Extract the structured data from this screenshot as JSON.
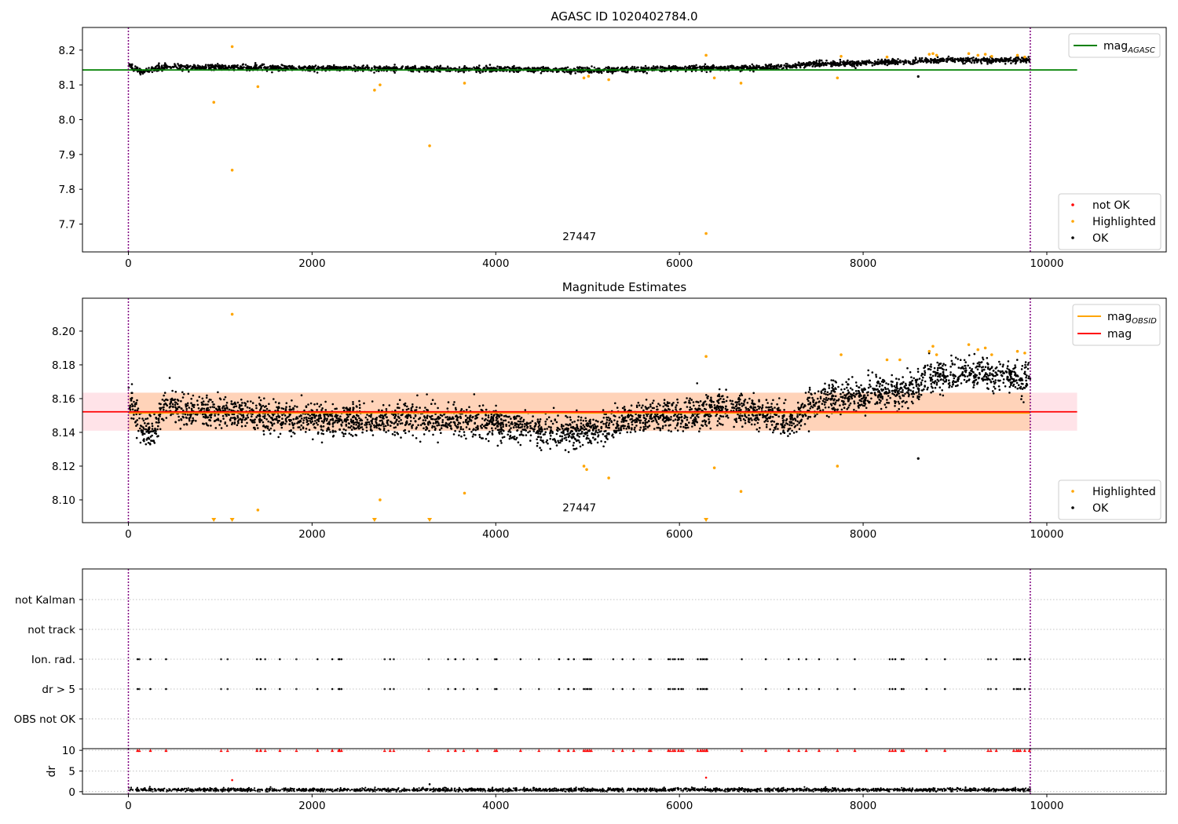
{
  "figure": {
    "colors": {
      "ok": "#000000",
      "highlighted": "#ffa500",
      "not_ok": "#ff0000",
      "agasc_line": "#008000",
      "mag_line": "#ff0000",
      "obsid_line": "#ffa500",
      "band_outer": "#ffc0cb",
      "band_inner": "#ffd0b0",
      "obs_boundary": "#800080"
    }
  },
  "chart_data": [
    {
      "id": "top",
      "type": "scatter",
      "title": "AGASC ID 1020402784.0",
      "xlim": [
        -500,
        11300
      ],
      "ylim": [
        7.62,
        8.265
      ],
      "xticks": [
        0,
        2000,
        4000,
        6000,
        8000,
        10000
      ],
      "yticks": [
        7.7,
        7.8,
        7.9,
        8.0,
        8.1,
        8.2
      ],
      "xtick_labels": [
        "0",
        "2000",
        "4000",
        "6000",
        "8000",
        "10000"
      ],
      "ytick_labels": [
        "7.7",
        "7.8",
        "7.9",
        "8.0",
        "8.1",
        "8.2"
      ],
      "obs_boundaries": [
        0,
        9820
      ],
      "obsid_annotation": {
        "text": "27447",
        "x": 4910,
        "y": 7.665
      },
      "reference_line": {
        "name": "mag_AGASC",
        "label_main": "mag",
        "label_sub": "AGASC",
        "y": 8.143,
        "x_range": [
          -500,
          10330
        ]
      },
      "ok_series": {
        "name": "OK",
        "x_range": [
          0,
          9820
        ],
        "trend": [
          [
            0,
            8.155
          ],
          [
            150,
            8.138
          ],
          [
            400,
            8.152
          ],
          [
            2000,
            8.148
          ],
          [
            4000,
            8.145
          ],
          [
            5000,
            8.142
          ],
          [
            6000,
            8.148
          ],
          [
            7000,
            8.15
          ],
          [
            7500,
            8.16
          ],
          [
            8000,
            8.162
          ],
          [
            8700,
            8.17
          ],
          [
            9820,
            8.172
          ]
        ],
        "noise": 0.007
      },
      "highlighted": [
        {
          "x": 1130,
          "y": 8.21
        },
        {
          "x": 930,
          "y": 8.05
        },
        {
          "x": 1130,
          "y": 7.855
        },
        {
          "x": 1410,
          "y": 8.095
        },
        {
          "x": 2680,
          "y": 8.085
        },
        {
          "x": 2740,
          "y": 8.1
        },
        {
          "x": 3280,
          "y": 7.925
        },
        {
          "x": 3660,
          "y": 8.105
        },
        {
          "x": 4960,
          "y": 8.12
        },
        {
          "x": 5010,
          "y": 8.125
        },
        {
          "x": 5230,
          "y": 8.115
        },
        {
          "x": 6290,
          "y": 8.185
        },
        {
          "x": 6290,
          "y": 7.673
        },
        {
          "x": 6380,
          "y": 8.12
        },
        {
          "x": 6670,
          "y": 8.105
        },
        {
          "x": 7720,
          "y": 8.12
        },
        {
          "x": 7760,
          "y": 8.182
        },
        {
          "x": 8260,
          "y": 8.18
        },
        {
          "x": 8720,
          "y": 8.188
        },
        {
          "x": 8760,
          "y": 8.19
        },
        {
          "x": 8800,
          "y": 8.185
        },
        {
          "x": 9150,
          "y": 8.19
        },
        {
          "x": 9250,
          "y": 8.185
        },
        {
          "x": 9330,
          "y": 8.188
        },
        {
          "x": 9400,
          "y": 8.182
        },
        {
          "x": 9680,
          "y": 8.185
        },
        {
          "x": 9760,
          "y": 8.18
        }
      ],
      "outliers_ok": [
        {
          "x": 8600,
          "y": 8.124
        }
      ],
      "legends": {
        "upper_right": [
          {
            "label_main": "mag",
            "label_sub": "AGASC",
            "kind": "line",
            "color": "#008000"
          }
        ],
        "lower_right": [
          {
            "label": "not OK",
            "kind": "dot",
            "color": "#ff0000"
          },
          {
            "label": "Highlighted",
            "kind": "dot",
            "color": "#ffa500"
          },
          {
            "label": "OK",
            "kind": "dot",
            "color": "#000000"
          }
        ]
      }
    },
    {
      "id": "middle",
      "type": "scatter",
      "title": "Magnitude Estimates",
      "xlim": [
        -500,
        11300
      ],
      "ylim": [
        8.0865,
        8.2195
      ],
      "xticks": [
        0,
        2000,
        4000,
        6000,
        8000,
        10000
      ],
      "yticks": [
        8.1,
        8.12,
        8.14,
        8.16,
        8.18,
        8.2
      ],
      "xtick_labels": [
        "0",
        "2000",
        "4000",
        "6000",
        "8000",
        "10000"
      ],
      "ytick_labels": [
        "8.10",
        "8.12",
        "8.14",
        "8.16",
        "8.18",
        "8.20"
      ],
      "obs_boundaries": [
        0,
        9820
      ],
      "obsid_annotation": {
        "text": "27447",
        "x": 4910,
        "y": 8.0955
      },
      "mag_line": {
        "y": 8.1522,
        "x_range": [
          -500,
          10330
        ]
      },
      "mag_band_outer": {
        "y_range": [
          8.141,
          8.1635
        ],
        "x_range": [
          -500,
          10330
        ]
      },
      "mag_band_inner": {
        "y_range": [
          8.141,
          8.1635
        ],
        "x_range": [
          0,
          9820
        ]
      },
      "obsid_line": {
        "y": 8.1515,
        "x_range": [
          0,
          9820
        ]
      },
      "ok_series": {
        "name": "OK",
        "x_range": [
          0,
          9820
        ],
        "trend": [
          [
            0,
            8.165
          ],
          [
            120,
            8.145
          ],
          [
            250,
            8.138
          ],
          [
            400,
            8.155
          ],
          [
            1000,
            8.152
          ],
          [
            2000,
            8.148
          ],
          [
            3000,
            8.147
          ],
          [
            4000,
            8.146
          ],
          [
            4700,
            8.14
          ],
          [
            5000,
            8.141
          ],
          [
            5500,
            8.148
          ],
          [
            6000,
            8.15
          ],
          [
            6500,
            8.155
          ],
          [
            7000,
            8.15
          ],
          [
            7200,
            8.145
          ],
          [
            7500,
            8.16
          ],
          [
            8000,
            8.162
          ],
          [
            8500,
            8.165
          ],
          [
            8700,
            8.172
          ],
          [
            9100,
            8.175
          ],
          [
            9820,
            8.173
          ]
        ],
        "noise": 0.0085
      },
      "highlighted": [
        {
          "x": 1130,
          "y": 8.21
        },
        {
          "x": 1410,
          "y": 8.094
        },
        {
          "x": 2740,
          "y": 8.1
        },
        {
          "x": 3660,
          "y": 8.104
        },
        {
          "x": 4960,
          "y": 8.12
        },
        {
          "x": 4990,
          "y": 8.118
        },
        {
          "x": 5230,
          "y": 8.113
        },
        {
          "x": 6290,
          "y": 8.185
        },
        {
          "x": 6380,
          "y": 8.119
        },
        {
          "x": 6670,
          "y": 8.105
        },
        {
          "x": 7720,
          "y": 8.12
        },
        {
          "x": 7760,
          "y": 8.186
        },
        {
          "x": 8260,
          "y": 8.183
        },
        {
          "x": 8400,
          "y": 8.183
        },
        {
          "x": 8720,
          "y": 8.188
        },
        {
          "x": 8760,
          "y": 8.191
        },
        {
          "x": 8800,
          "y": 8.186
        },
        {
          "x": 9150,
          "y": 8.192
        },
        {
          "x": 9250,
          "y": 8.189
        },
        {
          "x": 9330,
          "y": 8.19
        },
        {
          "x": 9400,
          "y": 8.186
        },
        {
          "x": 9680,
          "y": 8.188
        },
        {
          "x": 9760,
          "y": 8.187
        }
      ],
      "highlighted_clipped": [
        930,
        1130,
        2680,
        3280,
        6290
      ],
      "outliers_ok": [
        {
          "x": 8600,
          "y": 8.1245
        }
      ],
      "legends": {
        "upper_right": [
          {
            "label_main": "mag",
            "label_sub": "OBSID",
            "kind": "line",
            "color": "#ffa500"
          },
          {
            "label_main": "mag",
            "label_sub": "",
            "kind": "line",
            "color": "#ff0000"
          }
        ],
        "lower_right": [
          {
            "label": "Highlighted",
            "kind": "dot",
            "color": "#ffa500"
          },
          {
            "label": "OK",
            "kind": "dot",
            "color": "#000000"
          }
        ]
      }
    },
    {
      "id": "flags",
      "type": "scatter",
      "xlim": [
        -500,
        11300
      ],
      "categories": [
        "OBS not OK",
        "dr > 5",
        "Ion. rad.",
        "not track",
        "not Kalman"
      ],
      "ylabels": [
        "not Kalman",
        "not track",
        "Ion. rad.",
        "dr > 5",
        "OBS not OK"
      ],
      "obs_boundaries": [
        0,
        9820
      ],
      "flag_times": [
        100,
        120,
        240,
        410,
        1010,
        1080,
        1400,
        1440,
        1490,
        1650,
        1830,
        2060,
        2220,
        2290,
        2300,
        2320,
        2790,
        2850,
        2890,
        3270,
        3480,
        3560,
        3650,
        3800,
        3990,
        4010,
        4270,
        4470,
        4690,
        4790,
        4850,
        4960,
        4980,
        5000,
        5020,
        5040,
        5280,
        5380,
        5500,
        5670,
        5690,
        5880,
        5900,
        5930,
        5950,
        5990,
        6020,
        6040,
        6200,
        6230,
        6250,
        6270,
        6290,
        6300,
        6680,
        6940,
        7190,
        7300,
        7380,
        7520,
        7720,
        7910,
        8290,
        8320,
        8350,
        8420,
        8440,
        8690,
        8890,
        9360,
        9390,
        9450,
        9640,
        9670,
        9690,
        9710,
        9760,
        9810
      ],
      "flagged_rows": [
        "dr > 5",
        "Ion. rad."
      ]
    },
    {
      "id": "dr",
      "type": "scatter",
      "xlim": [
        -500,
        11300
      ],
      "ylim": [
        -0.6,
        10.4
      ],
      "ylabel": "dr",
      "yticks": [
        0,
        5,
        10
      ],
      "ytick_labels": [
        "0",
        "5",
        "10"
      ],
      "xticks": [
        0,
        2000,
        4000,
        6000,
        8000,
        10000
      ],
      "xtick_labels": [
        "0",
        "2000",
        "4000",
        "6000",
        "8000",
        "10000"
      ],
      "obs_boundaries": [
        0,
        9820
      ],
      "ok_series": {
        "name": "OK",
        "x_range": [
          0,
          9820
        ],
        "mean": 0.45,
        "noise": 0.22
      },
      "clipped_dr_value": 10,
      "extra_points": [
        {
          "x": 1130,
          "y": 2.8,
          "color": "#ff0000"
        },
        {
          "x": 6290,
          "y": 3.4,
          "color": "#ff0000"
        },
        {
          "x": 3280,
          "y": 1.8,
          "color": "#000000"
        }
      ]
    }
  ]
}
